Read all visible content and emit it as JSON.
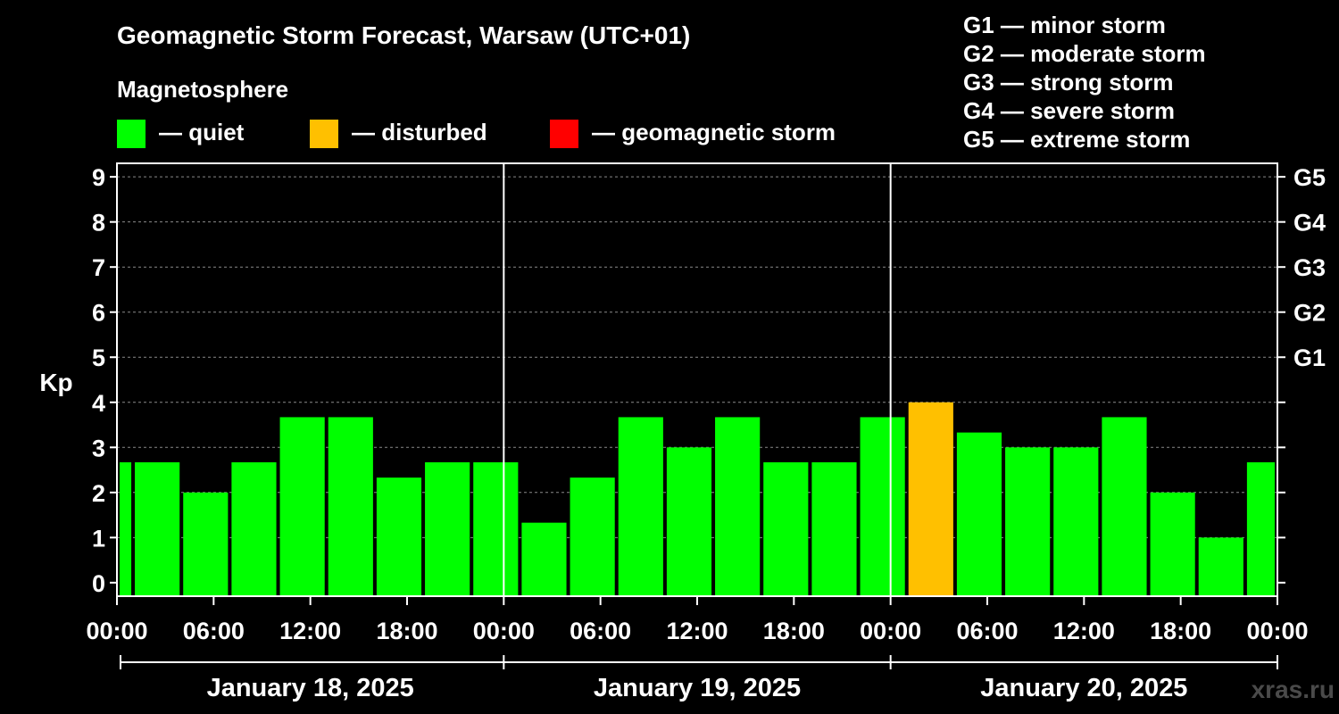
{
  "chart_data": {
    "type": "bar",
    "title": "Geomagnetic Storm Forecast, Warsaw (UTC+01)",
    "legend": {
      "title": "Magnetosphere",
      "items": [
        {
          "label": "— quiet",
          "color": "#00ff00"
        },
        {
          "label": "— disturbed",
          "color": "#ffc000"
        },
        {
          "label": "— geomagnetic storm",
          "color": "#ff0000"
        }
      ]
    },
    "storm_scale": [
      "G1 — minor storm",
      "G2 — moderate storm",
      "G3 — strong storm",
      "G4 — severe storm",
      "G5 — extreme storm"
    ],
    "ylabel": "Kp",
    "ylim": [
      -0.3,
      9.3
    ],
    "y_ticks": [
      "0",
      "1",
      "2",
      "3",
      "4",
      "5",
      "6",
      "7",
      "8",
      "9"
    ],
    "right_ticks": [
      {
        "kp": 5,
        "label": "G1"
      },
      {
        "kp": 6,
        "label": "G2"
      },
      {
        "kp": 7,
        "label": "G3"
      },
      {
        "kp": 8,
        "label": "G4"
      },
      {
        "kp": 9,
        "label": "G5"
      }
    ],
    "x_range_hours": [
      0,
      72
    ],
    "x_ticks": [
      {
        "h": 0,
        "label": "00:00"
      },
      {
        "h": 6,
        "label": "06:00"
      },
      {
        "h": 12,
        "label": "12:00"
      },
      {
        "h": 18,
        "label": "18:00"
      },
      {
        "h": 24,
        "label": "00:00"
      },
      {
        "h": 30,
        "label": "06:00"
      },
      {
        "h": 36,
        "label": "12:00"
      },
      {
        "h": 42,
        "label": "18:00"
      },
      {
        "h": 48,
        "label": "00:00"
      },
      {
        "h": 54,
        "label": "06:00"
      },
      {
        "h": 60,
        "label": "12:00"
      },
      {
        "h": 66,
        "label": "18:00"
      },
      {
        "h": 72,
        "label": "00:00"
      }
    ],
    "day_dividers_h": [
      24,
      48
    ],
    "days": [
      {
        "label": "January 18, 2025",
        "start_h": 0,
        "end_h": 24
      },
      {
        "label": "January 19, 2025",
        "start_h": 24,
        "end_h": 48
      },
      {
        "label": "January 20, 2025",
        "start_h": 48,
        "end_h": 72
      }
    ],
    "grid_y": true,
    "colors": {
      "quiet": "#00ff00",
      "disturbed": "#ffc000",
      "storm": "#ff0000"
    },
    "bars": [
      {
        "start_h": 0,
        "end_h": 1,
        "kp": 2.67,
        "level": "quiet"
      },
      {
        "start_h": 1,
        "end_h": 4,
        "kp": 2.67,
        "level": "quiet"
      },
      {
        "start_h": 4,
        "end_h": 7,
        "kp": 2.0,
        "level": "quiet"
      },
      {
        "start_h": 7,
        "end_h": 10,
        "kp": 2.67,
        "level": "quiet"
      },
      {
        "start_h": 10,
        "end_h": 13,
        "kp": 3.67,
        "level": "quiet"
      },
      {
        "start_h": 13,
        "end_h": 16,
        "kp": 3.67,
        "level": "quiet"
      },
      {
        "start_h": 16,
        "end_h": 19,
        "kp": 2.33,
        "level": "quiet"
      },
      {
        "start_h": 19,
        "end_h": 22,
        "kp": 2.67,
        "level": "quiet"
      },
      {
        "start_h": 22,
        "end_h": 25,
        "kp": 2.67,
        "level": "quiet"
      },
      {
        "start_h": 25,
        "end_h": 28,
        "kp": 1.33,
        "level": "quiet"
      },
      {
        "start_h": 28,
        "end_h": 31,
        "kp": 2.33,
        "level": "quiet"
      },
      {
        "start_h": 31,
        "end_h": 34,
        "kp": 3.67,
        "level": "quiet"
      },
      {
        "start_h": 34,
        "end_h": 37,
        "kp": 3.0,
        "level": "quiet"
      },
      {
        "start_h": 37,
        "end_h": 40,
        "kp": 3.67,
        "level": "quiet"
      },
      {
        "start_h": 40,
        "end_h": 43,
        "kp": 2.67,
        "level": "quiet"
      },
      {
        "start_h": 43,
        "end_h": 46,
        "kp": 2.67,
        "level": "quiet"
      },
      {
        "start_h": 46,
        "end_h": 49,
        "kp": 3.67,
        "level": "quiet"
      },
      {
        "start_h": 49,
        "end_h": 52,
        "kp": 4.0,
        "level": "disturbed"
      },
      {
        "start_h": 52,
        "end_h": 55,
        "kp": 3.33,
        "level": "quiet"
      },
      {
        "start_h": 55,
        "end_h": 58,
        "kp": 3.0,
        "level": "quiet"
      },
      {
        "start_h": 58,
        "end_h": 61,
        "kp": 3.0,
        "level": "quiet"
      },
      {
        "start_h": 61,
        "end_h": 64,
        "kp": 3.67,
        "level": "quiet"
      },
      {
        "start_h": 64,
        "end_h": 67,
        "kp": 2.0,
        "level": "quiet"
      },
      {
        "start_h": 67,
        "end_h": 70,
        "kp": 1.0,
        "level": "quiet"
      },
      {
        "start_h": 70,
        "end_h": 72,
        "kp": 2.67,
        "level": "quiet"
      }
    ]
  },
  "watermark": "xras.ru"
}
